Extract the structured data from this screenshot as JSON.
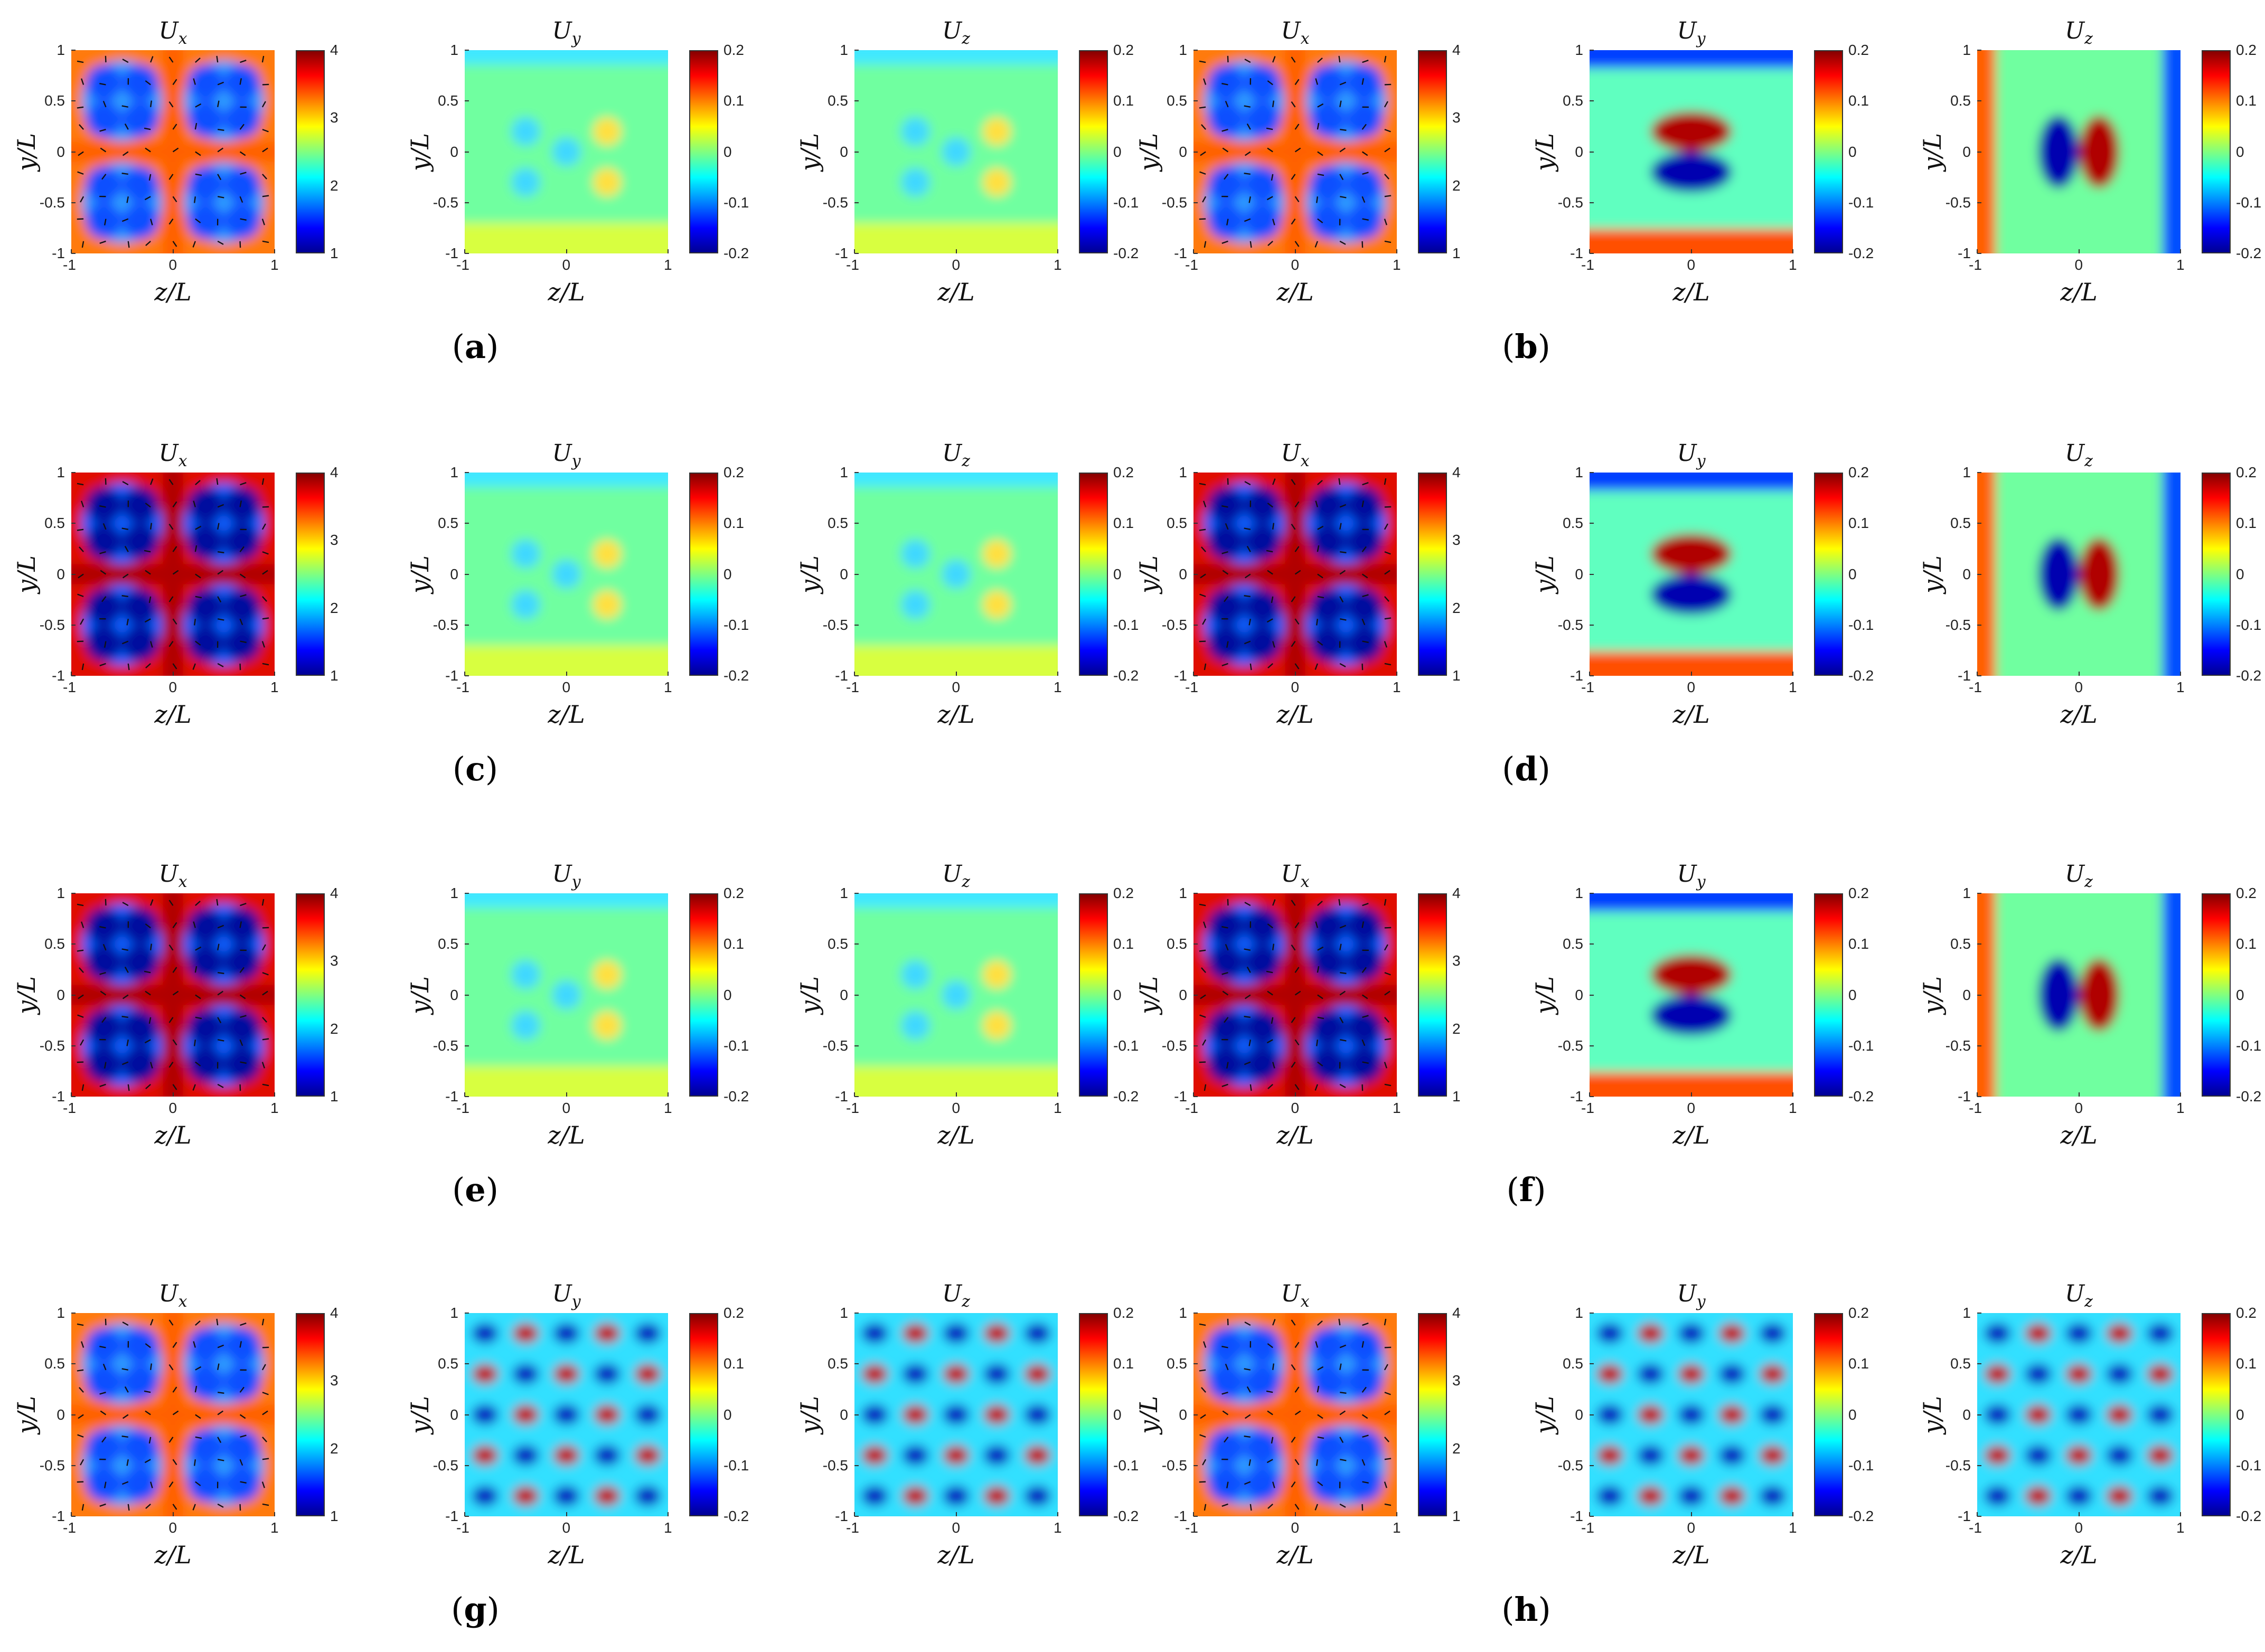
{
  "figure": {
    "captions": [
      {
        "id": "a",
        "text": "a"
      },
      {
        "id": "b",
        "text": "b"
      },
      {
        "id": "c",
        "text": "c"
      },
      {
        "id": "d",
        "text": "d"
      },
      {
        "id": "e",
        "text": "e"
      },
      {
        "id": "f",
        "text": "f"
      },
      {
        "id": "g",
        "text": "g"
      },
      {
        "id": "h",
        "text": "h"
      }
    ],
    "xlabel": "z/L",
    "ylabel": "y/L",
    "axis_ticks": [
      "-1",
      "-0.5",
      "0",
      "0.5",
      "1"
    ],
    "x_ticks": [
      "-1",
      "0",
      "1"
    ]
  },
  "chart_data": [
    {
      "panel": "a-Ux",
      "type": "heatmap",
      "title": "Ux",
      "title_main": "U",
      "title_sub": "x",
      "xlabel": "z/L",
      "ylabel": "y/L",
      "xlim": [
        -1,
        1
      ],
      "ylim": [
        -1,
        1
      ],
      "colorbar": {
        "ticks": [
          "1",
          "2",
          "3",
          "4"
        ],
        "range": [
          1,
          4
        ]
      },
      "pattern": "velocity-quadrants",
      "quiver": true
    },
    {
      "panel": "a-Uy",
      "type": "heatmap",
      "title": "Uy",
      "title_main": "U",
      "title_sub": "y",
      "xlabel": "z/L",
      "ylabel": "y/L",
      "xlim": [
        -1,
        1
      ],
      "ylim": [
        -1,
        1
      ],
      "colorbar": {
        "ticks": [
          "-0.2",
          "-0.1",
          "0",
          "0.1",
          "0.2"
        ],
        "range": [
          -0.2,
          0.2
        ]
      },
      "pattern": "weak-field"
    },
    {
      "panel": "a-Uz",
      "type": "heatmap",
      "title": "Uz",
      "title_main": "U",
      "title_sub": "z",
      "xlabel": "z/L",
      "ylabel": "y/L",
      "xlim": [
        -1,
        1
      ],
      "ylim": [
        -1,
        1
      ],
      "colorbar": {
        "ticks": [
          "-0.2",
          "-0.1",
          "0",
          "0.1",
          "0.2"
        ],
        "range": [
          -0.2,
          0.2
        ]
      },
      "pattern": "weak-field"
    },
    {
      "panel": "b-Ux",
      "type": "heatmap",
      "title": "Ux",
      "title_main": "U",
      "title_sub": "x",
      "xlabel": "z/L",
      "ylabel": "y/L",
      "xlim": [
        -1,
        1
      ],
      "ylim": [
        -1,
        1
      ],
      "colorbar": {
        "ticks": [
          "1",
          "2",
          "3",
          "4"
        ],
        "range": [
          1,
          4
        ]
      },
      "pattern": "velocity-quadrants",
      "quiver": true
    },
    {
      "panel": "b-Uy",
      "type": "heatmap",
      "title": "Uy",
      "title_main": "U",
      "title_sub": "y",
      "xlabel": "z/L",
      "ylabel": "y/L",
      "xlim": [
        -1,
        1
      ],
      "ylim": [
        -1,
        1
      ],
      "colorbar": {
        "ticks": [
          "-0.2",
          "-0.1",
          "0",
          "0.1",
          "0.2"
        ],
        "range": [
          -0.2,
          0.2
        ]
      },
      "pattern": "vertical-dipole"
    },
    {
      "panel": "b-Uz",
      "type": "heatmap",
      "title": "Uz",
      "title_main": "U",
      "title_sub": "z",
      "xlabel": "z/L",
      "ylabel": "y/L",
      "xlim": [
        -1,
        1
      ],
      "ylim": [
        -1,
        1
      ],
      "colorbar": {
        "ticks": [
          "-0.2",
          "-0.1",
          "0",
          "0.1",
          "0.2"
        ],
        "range": [
          -0.2,
          0.2
        ]
      },
      "pattern": "horizontal-dipole"
    },
    {
      "panel": "c-Ux",
      "type": "heatmap",
      "title": "Ux",
      "title_main": "U",
      "title_sub": "x",
      "xlabel": "z/L",
      "ylabel": "y/L",
      "xlim": [
        -1,
        1
      ],
      "ylim": [
        -1,
        1
      ],
      "colorbar": {
        "ticks": [
          "1",
          "2",
          "3",
          "4"
        ],
        "range": [
          1,
          4
        ]
      },
      "pattern": "velocity-quadrants-strong",
      "quiver": true
    },
    {
      "panel": "c-Uy",
      "type": "heatmap",
      "title": "Uy",
      "title_main": "U",
      "title_sub": "y",
      "xlabel": "z/L",
      "ylabel": "y/L",
      "xlim": [
        -1,
        1
      ],
      "ylim": [
        -1,
        1
      ],
      "colorbar": {
        "ticks": [
          "-0.2",
          "-0.1",
          "0",
          "0.1",
          "0.2"
        ],
        "range": [
          -0.2,
          0.2
        ]
      },
      "pattern": "weak-field"
    },
    {
      "panel": "c-Uz",
      "type": "heatmap",
      "title": "Uz",
      "title_main": "U",
      "title_sub": "z",
      "xlabel": "z/L",
      "ylabel": "y/L",
      "xlim": [
        -1,
        1
      ],
      "ylim": [
        -1,
        1
      ],
      "colorbar": {
        "ticks": [
          "-0.2",
          "-0.1",
          "0",
          "0.1",
          "0.2"
        ],
        "range": [
          -0.2,
          0.2
        ]
      },
      "pattern": "weak-field"
    },
    {
      "panel": "d-Ux",
      "type": "heatmap",
      "title": "Ux",
      "title_main": "U",
      "title_sub": "x",
      "xlabel": "z/L",
      "ylabel": "y/L",
      "xlim": [
        -1,
        1
      ],
      "ylim": [
        -1,
        1
      ],
      "colorbar": {
        "ticks": [
          "1",
          "2",
          "3",
          "4"
        ],
        "range": [
          1,
          4
        ]
      },
      "pattern": "velocity-quadrants-strong",
      "quiver": true
    },
    {
      "panel": "d-Uy",
      "type": "heatmap",
      "title": "Uy",
      "title_main": "U",
      "title_sub": "y",
      "xlabel": "z/L",
      "ylabel": "y/L",
      "xlim": [
        -1,
        1
      ],
      "ylim": [
        -1,
        1
      ],
      "colorbar": {
        "ticks": [
          "-0.2",
          "-0.1",
          "0",
          "0.1",
          "0.2"
        ],
        "range": [
          -0.2,
          0.2
        ]
      },
      "pattern": "vertical-dipole"
    },
    {
      "panel": "d-Uz",
      "type": "heatmap",
      "title": "Uz",
      "title_main": "U",
      "title_sub": "z",
      "xlabel": "z/L",
      "ylabel": "y/L",
      "xlim": [
        -1,
        1
      ],
      "ylim": [
        -1,
        1
      ],
      "colorbar": {
        "ticks": [
          "-0.2",
          "-0.1",
          "0",
          "0.1",
          "0.2"
        ],
        "range": [
          -0.2,
          0.2
        ]
      },
      "pattern": "horizontal-dipole"
    },
    {
      "panel": "e-Ux",
      "type": "heatmap",
      "title": "Ux",
      "title_main": "U",
      "title_sub": "x",
      "xlabel": "z/L",
      "ylabel": "y/L",
      "xlim": [
        -1,
        1
      ],
      "ylim": [
        -1,
        1
      ],
      "colorbar": {
        "ticks": [
          "1",
          "2",
          "3",
          "4"
        ],
        "range": [
          1,
          4
        ]
      },
      "pattern": "velocity-quadrants-strong",
      "quiver": true
    },
    {
      "panel": "e-Uy",
      "type": "heatmap",
      "title": "Uy",
      "title_main": "U",
      "title_sub": "y",
      "xlabel": "z/L",
      "ylabel": "y/L",
      "xlim": [
        -1,
        1
      ],
      "ylim": [
        -1,
        1
      ],
      "colorbar": {
        "ticks": [
          "-0.2",
          "-0.1",
          "0",
          "0.1",
          "0.2"
        ],
        "range": [
          -0.2,
          0.2
        ]
      },
      "pattern": "weak-field"
    },
    {
      "panel": "e-Uz",
      "type": "heatmap",
      "title": "Uz",
      "title_main": "U",
      "title_sub": "z",
      "xlabel": "z/L",
      "ylabel": "y/L",
      "xlim": [
        -1,
        1
      ],
      "ylim": [
        -1,
        1
      ],
      "colorbar": {
        "ticks": [
          "-0.2",
          "-0.1",
          "0",
          "0.1",
          "0.2"
        ],
        "range": [
          -0.2,
          0.2
        ]
      },
      "pattern": "weak-field"
    },
    {
      "panel": "f-Ux",
      "type": "heatmap",
      "title": "Ux",
      "title_main": "U",
      "title_sub": "x",
      "xlabel": "z/L",
      "ylabel": "y/L",
      "xlim": [
        -1,
        1
      ],
      "ylim": [
        -1,
        1
      ],
      "colorbar": {
        "ticks": [
          "1",
          "2",
          "3",
          "4"
        ],
        "range": [
          1,
          4
        ]
      },
      "pattern": "velocity-quadrants-strong",
      "quiver": true
    },
    {
      "panel": "f-Uy",
      "type": "heatmap",
      "title": "Uy",
      "title_main": "U",
      "title_sub": "y",
      "xlabel": "z/L",
      "ylabel": "y/L",
      "xlim": [
        -1,
        1
      ],
      "ylim": [
        -1,
        1
      ],
      "colorbar": {
        "ticks": [
          "-0.2",
          "-0.1",
          "0",
          "0.1",
          "0.2"
        ],
        "range": [
          -0.2,
          0.2
        ]
      },
      "pattern": "vertical-dipole"
    },
    {
      "panel": "f-Uz",
      "type": "heatmap",
      "title": "Uz",
      "title_main": "U",
      "title_sub": "z",
      "xlabel": "z/L",
      "ylabel": "y/L",
      "xlim": [
        -1,
        1
      ],
      "ylim": [
        -1,
        1
      ],
      "colorbar": {
        "ticks": [
          "-0.2",
          "-0.1",
          "0",
          "0.1",
          "0.2"
        ],
        "range": [
          -0.2,
          0.2
        ]
      },
      "pattern": "horizontal-dipole"
    },
    {
      "panel": "g-Ux",
      "type": "heatmap",
      "title": "Ux",
      "title_main": "U",
      "title_sub": "x",
      "xlabel": "z/L",
      "ylabel": "y/L",
      "xlim": [
        -1,
        1
      ],
      "ylim": [
        -1,
        1
      ],
      "colorbar": {
        "ticks": [
          "1",
          "2",
          "3",
          "4"
        ],
        "range": [
          1,
          4
        ]
      },
      "pattern": "velocity-quadrants",
      "quiver": true
    },
    {
      "panel": "g-Uy",
      "type": "heatmap",
      "title": "Uy",
      "title_main": "U",
      "title_sub": "y",
      "xlabel": "z/L",
      "ylabel": "y/L",
      "xlim": [
        -1,
        1
      ],
      "ylim": [
        -1,
        1
      ],
      "colorbar": {
        "ticks": [
          "-0.2",
          "-0.1",
          "0",
          "0.1",
          "0.2"
        ],
        "range": [
          -0.2,
          0.2
        ]
      },
      "pattern": "blob-lattice"
    },
    {
      "panel": "g-Uz",
      "type": "heatmap",
      "title": "Uz",
      "title_main": "U",
      "title_sub": "z",
      "xlabel": "z/L",
      "ylabel": "y/L",
      "xlim": [
        -1,
        1
      ],
      "ylim": [
        -1,
        1
      ],
      "colorbar": {
        "ticks": [
          "-0.2",
          "-0.1",
          "0",
          "0.1",
          "0.2"
        ],
        "range": [
          -0.2,
          0.2
        ]
      },
      "pattern": "blob-lattice"
    },
    {
      "panel": "h-Ux",
      "type": "heatmap",
      "title": "Ux",
      "title_main": "U",
      "title_sub": "x",
      "xlabel": "z/L",
      "ylabel": "y/L",
      "xlim": [
        -1,
        1
      ],
      "ylim": [
        -1,
        1
      ],
      "colorbar": {
        "ticks": [
          "1",
          "2",
          "3",
          "4"
        ],
        "range": [
          1,
          4
        ]
      },
      "pattern": "velocity-quadrants",
      "quiver": true
    },
    {
      "panel": "h-Uy",
      "type": "heatmap",
      "title": "Uy",
      "title_main": "U",
      "title_sub": "y",
      "xlabel": "z/L",
      "ylabel": "y/L",
      "xlim": [
        -1,
        1
      ],
      "ylim": [
        -1,
        1
      ],
      "colorbar": {
        "ticks": [
          "-0.2",
          "-0.1",
          "0",
          "0.1",
          "0.2"
        ],
        "range": [
          -0.2,
          0.2
        ]
      },
      "pattern": "blob-lattice"
    },
    {
      "panel": "h-Uz",
      "type": "heatmap",
      "title": "Uz",
      "title_main": "U",
      "title_sub": "z",
      "xlabel": "z/L",
      "ylabel": "y/L",
      "xlim": [
        -1,
        1
      ],
      "ylim": [
        -1,
        1
      ],
      "colorbar": {
        "ticks": [
          "-0.2",
          "-0.1",
          "0",
          "0.1",
          "0.2"
        ],
        "range": [
          -0.2,
          0.2
        ]
      },
      "pattern": "blob-lattice"
    }
  ],
  "palette": {
    "colormap": [
      "#00008f",
      "#0000ff",
      "#0080ff",
      "#00ffff",
      "#80ff80",
      "#ffff00",
      "#ff8000",
      "#ff0000",
      "#800000"
    ],
    "axis": "#333333",
    "arrow": "#111111"
  }
}
